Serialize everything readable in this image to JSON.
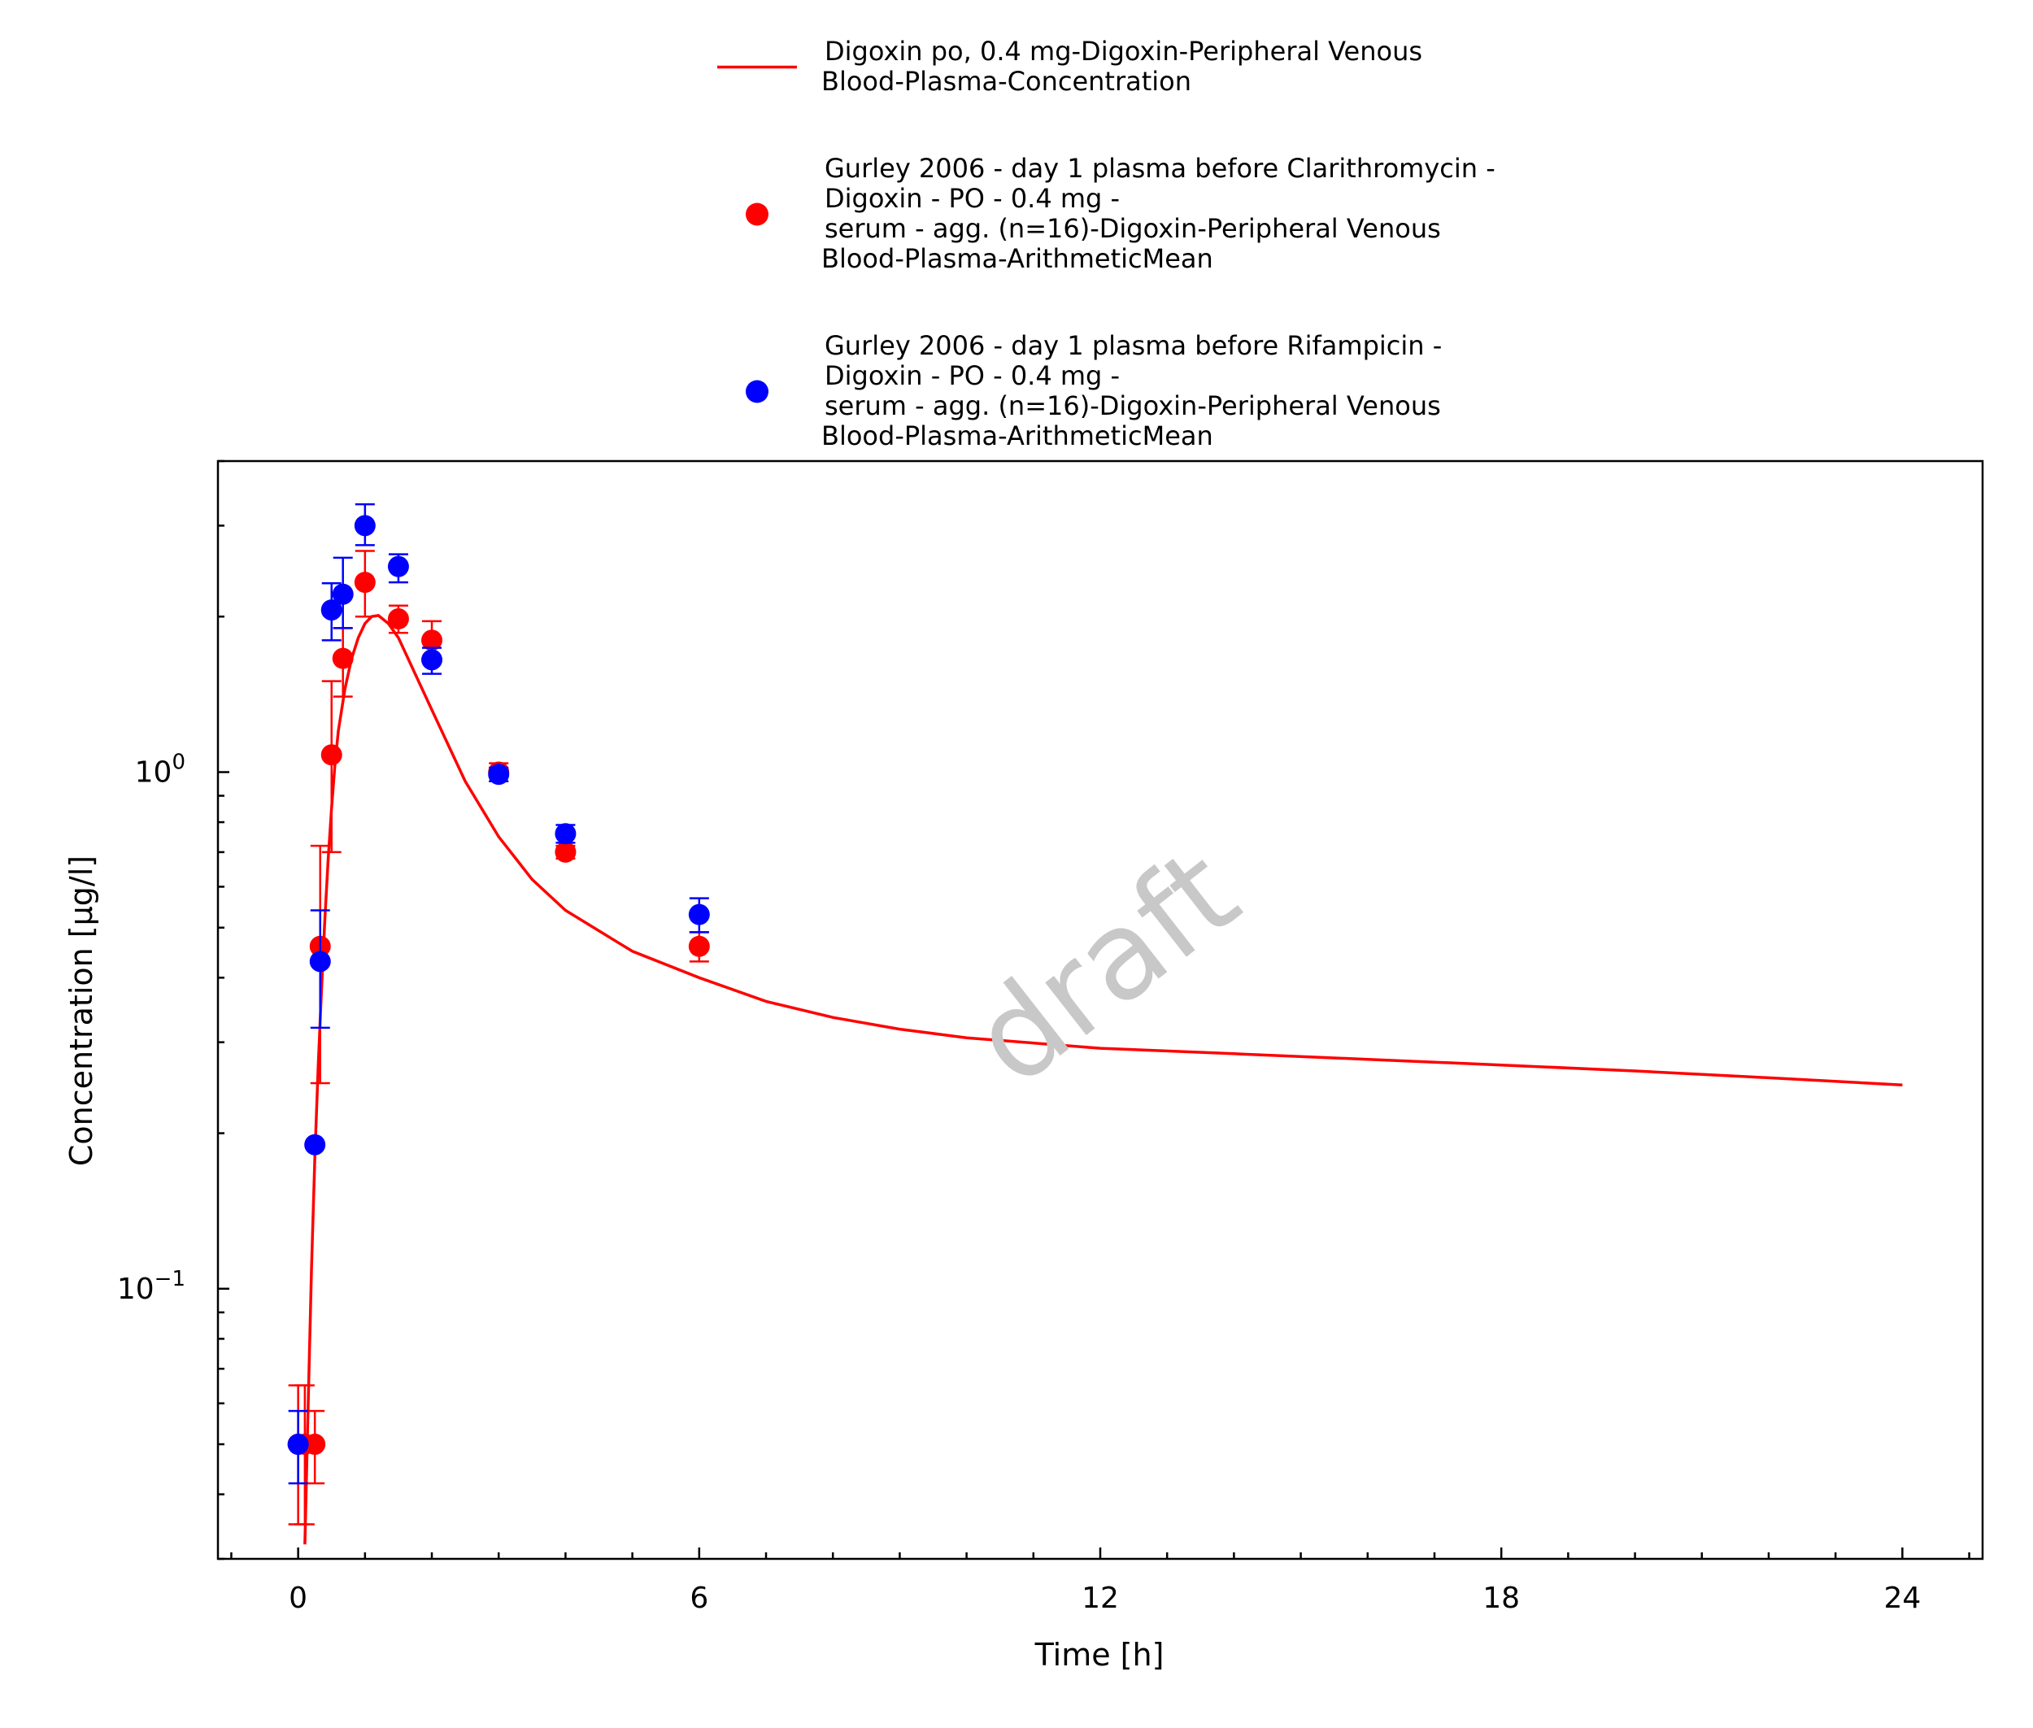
{
  "chart_data": {
    "type": "scatter",
    "title": "",
    "xlabel": "Time [h]",
    "ylabel": "Concentration [µg/l]",
    "xlim": [
      -1.2,
      25.2
    ],
    "ylim": [
      0.03,
      4.0
    ],
    "y_scale": "log",
    "x_ticks": [
      0,
      6,
      12,
      18,
      24
    ],
    "x_tick_labels": [
      "0",
      "6",
      "12",
      "18",
      "24"
    ],
    "y_ticks": [
      {
        "value": 1.0,
        "base": "10",
        "exp": "0"
      },
      {
        "value": 0.1,
        "base": "10",
        "exp": "−1"
      }
    ],
    "grid": false,
    "legend_position": "top-center",
    "watermark": "draft",
    "series": [
      {
        "name": "Digoxin po, 0.4 mg-Digoxin-Peripheral Venous Blood-Plasma-Concentration",
        "legend_lines": [
          "Digoxin po, 0.4 mg-Digoxin-Peripheral Venous",
          "Blood-Plasma-Concentration"
        ],
        "kind": "line",
        "color": "#ff0000",
        "x": [
          0.1,
          0.15,
          0.2,
          0.25,
          0.3,
          0.35,
          0.4,
          0.45,
          0.5,
          0.55,
          0.6,
          0.7,
          0.8,
          0.9,
          1.0,
          1.1,
          1.2,
          1.35,
          1.5,
          1.7,
          2.0,
          2.5,
          3.0,
          3.5,
          4.0,
          5.0,
          6.0,
          7.0,
          8.0,
          9.0,
          10.0,
          12.0,
          14.0,
          16.0,
          18.0,
          20.0,
          22.0,
          24.0
        ],
        "y": [
          0.032,
          0.06,
          0.11,
          0.18,
          0.27,
          0.38,
          0.52,
          0.68,
          0.85,
          1.03,
          1.2,
          1.45,
          1.66,
          1.82,
          1.94,
          2.0,
          2.01,
          1.94,
          1.82,
          1.6,
          1.32,
          0.96,
          0.75,
          0.62,
          0.54,
          0.45,
          0.4,
          0.36,
          0.335,
          0.318,
          0.306,
          0.292,
          0.285,
          0.278,
          0.271,
          0.264,
          0.256,
          0.248
        ]
      },
      {
        "name": "Gurley 2006 - day 1 plasma before Clarithromycin - Digoxin - PO - 0.4 mg - serum - agg. (n=16)-Digoxin-Peripheral Venous Blood-Plasma-ArithmeticMean",
        "legend_lines": [
          "Gurley 2006 - day 1 plasma before Clarithromycin -",
          "Digoxin - PO - 0.4 mg -",
          "serum - agg. (n=16)-Digoxin-Peripheral Venous",
          "Blood-Plasma-ArithmeticMean"
        ],
        "kind": "scatter",
        "color": "#ff0000",
        "x": [
          0.0,
          0.1,
          0.25,
          0.33,
          0.5,
          0.67,
          1.0,
          1.5,
          2.0,
          3.0,
          4.0,
          6.0
        ],
        "y": [
          0.05,
          0.05,
          0.05,
          0.46,
          1.08,
          1.66,
          2.33,
          1.98,
          1.8,
          1.0,
          0.7,
          0.46
        ],
        "yerr_low": [
          0.035,
          0.035,
          0.042,
          0.25,
          0.7,
          1.4,
          2.0,
          1.86,
          1.64,
          0.96,
          0.68,
          0.43
        ],
        "yerr_high": [
          0.065,
          0.065,
          0.058,
          0.72,
          1.5,
          1.9,
          2.68,
          2.1,
          1.96,
          1.04,
          0.72,
          0.49
        ]
      },
      {
        "name": "Gurley 2006 - day 1 plasma before Rifampicin - Digoxin - PO - 0.4 mg - serum - agg. (n=16)-Digoxin-Peripheral Venous Blood-Plasma-ArithmeticMean",
        "legend_lines": [
          "Gurley 2006 - day 1 plasma before Rifampicin -",
          "Digoxin - PO - 0.4 mg -",
          "serum - agg. (n=16)-Digoxin-Peripheral Venous",
          "Blood-Plasma-ArithmeticMean"
        ],
        "kind": "scatter",
        "color": "#0000ff",
        "x": [
          0.0,
          0.25,
          0.33,
          0.5,
          0.67,
          1.0,
          1.5,
          2.0,
          3.0,
          4.0,
          6.0
        ],
        "y": [
          0.05,
          0.19,
          0.43,
          2.06,
          2.21,
          3.0,
          2.5,
          1.65,
          0.99,
          0.76,
          0.53
        ],
        "yerr_low": [
          0.042,
          0.19,
          0.32,
          1.8,
          1.9,
          2.75,
          2.33,
          1.55,
          0.96,
          0.73,
          0.49
        ],
        "yerr_high": [
          0.058,
          0.19,
          0.54,
          2.32,
          2.6,
          3.3,
          2.64,
          1.74,
          1.02,
          0.79,
          0.57
        ]
      }
    ]
  }
}
